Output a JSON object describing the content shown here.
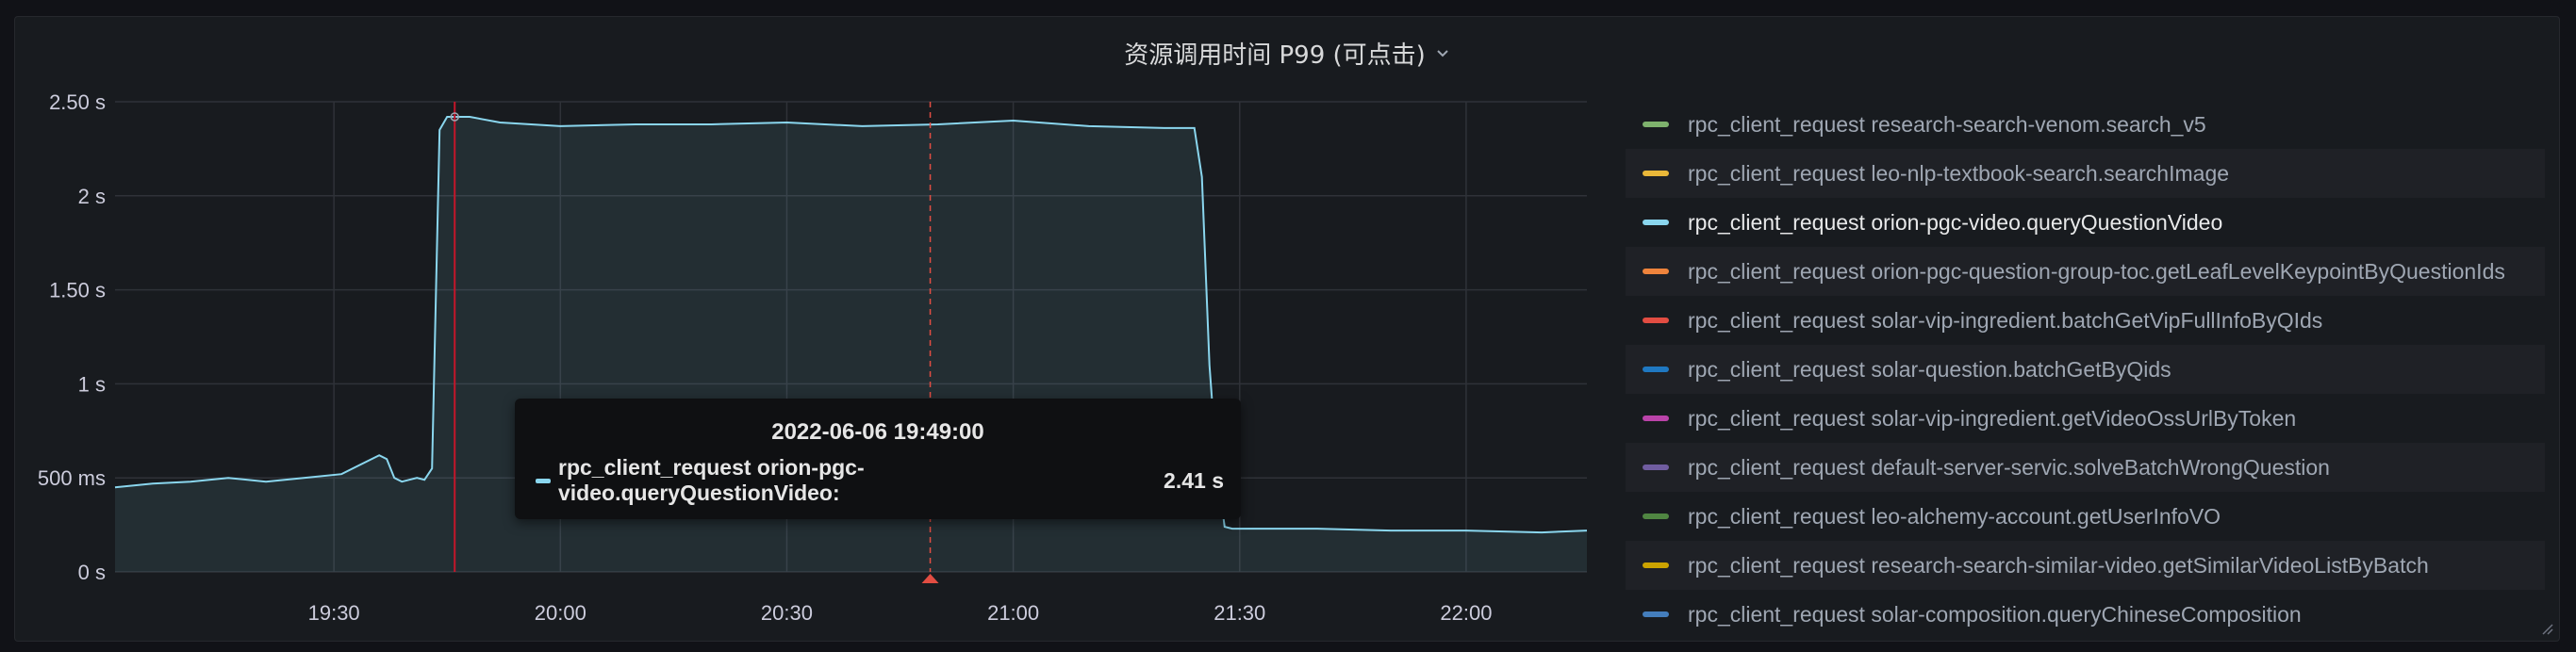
{
  "panel": {
    "title": "资源调用时间 P99 (可点击)"
  },
  "tooltip": {
    "time": "2022-06-06 19:49:00",
    "series": "rpc_client_request orion-pgc-video.queryQuestionVideo:",
    "value": "2.41 s",
    "color": "#8ad6ee"
  },
  "legend": [
    {
      "label": "rpc_client_request research-search-venom.search_v5",
      "color": "#7eb26d",
      "active": false
    },
    {
      "label": "rpc_client_request leo-nlp-textbook-search.searchImage",
      "color": "#eab839",
      "active": false
    },
    {
      "label": "rpc_client_request orion-pgc-video.queryQuestionVideo",
      "color": "#8ad6ee",
      "active": true
    },
    {
      "label": "rpc_client_request orion-pgc-question-group-toc.getLeafLevelKeypointByQuestionIds",
      "color": "#ef843c",
      "active": false
    },
    {
      "label": "rpc_client_request solar-vip-ingredient.batchGetVipFullInfoByQIds",
      "color": "#e24d42",
      "active": false
    },
    {
      "label": "rpc_client_request solar-question.batchGetByQids",
      "color": "#1f78c1",
      "active": false
    },
    {
      "label": "rpc_client_request solar-vip-ingredient.getVideoOssUrlByToken",
      "color": "#ba43a9",
      "active": false
    },
    {
      "label": "rpc_client_request default-server-servic.solveBatchWrongQuestion",
      "color": "#705da0",
      "active": false
    },
    {
      "label": "rpc_client_request leo-alchemy-account.getUserInfoVO",
      "color": "#508642",
      "active": false
    },
    {
      "label": "rpc_client_request research-search-similar-video.getSimilarVideoListByBatch",
      "color": "#cca300",
      "active": false
    },
    {
      "label": "rpc_client_request solar-composition.queryChineseComposition",
      "color": "#447ebc",
      "active": false
    }
  ],
  "chart_data": {
    "type": "area",
    "title": "资源调用时间 P99 (可点击)",
    "x_ticks": [
      "19:30",
      "20:00",
      "20:30",
      "21:00",
      "21:30",
      "22:00"
    ],
    "y_ticks": [
      "0 s",
      "500 ms",
      "1 s",
      "1.50 s",
      "2 s",
      "2.50 s"
    ],
    "ylim": [
      0,
      2.5
    ],
    "xlim_minutes": [
      1141,
      1336
    ],
    "grid": true,
    "legend_position": "right",
    "annotation_minute": 1186,
    "cursor_minute": 1249,
    "series": [
      {
        "name": "rpc_client_request orion-pgc-video.queryQuestionVideo",
        "color": "#8ad6ee",
        "x_minutes": [
          1141,
          1146,
          1151,
          1156,
          1161,
          1166,
          1171,
          1176,
          1177,
          1178,
          1179,
          1180,
          1181,
          1182,
          1183,
          1184,
          1185,
          1186,
          1188,
          1192,
          1200,
          1210,
          1220,
          1230,
          1240,
          1250,
          1260,
          1270,
          1280,
          1284,
          1285,
          1286,
          1287,
          1288,
          1289,
          1290,
          1300,
          1310,
          1320,
          1330,
          1336
        ],
        "values": [
          0.45,
          0.47,
          0.48,
          0.5,
          0.48,
          0.5,
          0.52,
          0.62,
          0.6,
          0.5,
          0.48,
          0.49,
          0.5,
          0.49,
          0.55,
          2.35,
          2.42,
          2.42,
          2.42,
          2.39,
          2.37,
          2.38,
          2.38,
          2.39,
          2.37,
          2.38,
          2.4,
          2.37,
          2.36,
          2.36,
          2.1,
          1.1,
          0.55,
          0.24,
          0.23,
          0.23,
          0.23,
          0.22,
          0.22,
          0.21,
          0.22
        ]
      }
    ]
  }
}
